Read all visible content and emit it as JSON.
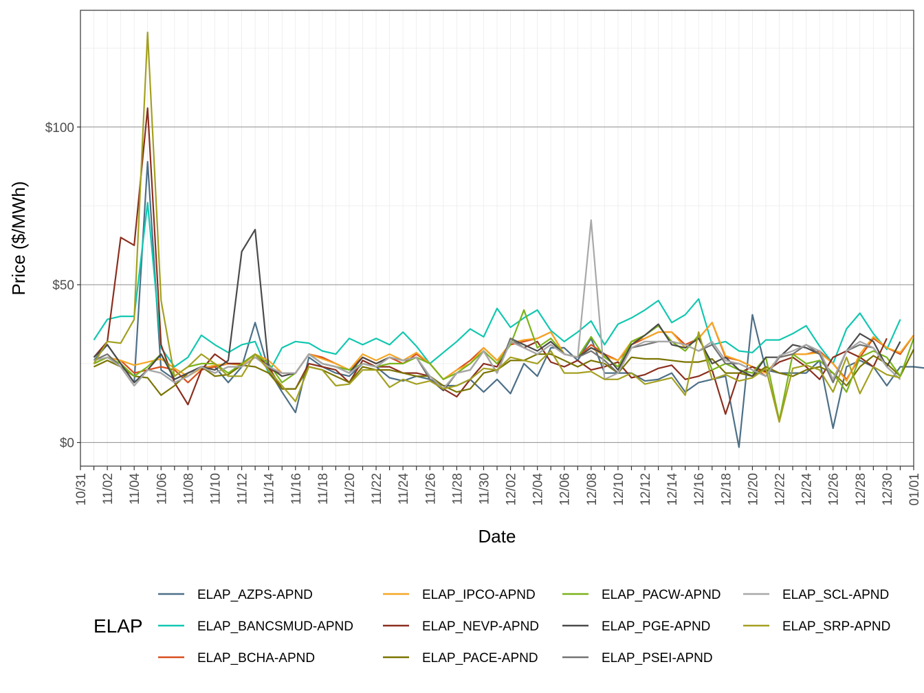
{
  "chart_data": {
    "type": "line",
    "xlabel": "Date",
    "ylabel": "Price ($/MWh)",
    "x_ticks": [
      "10/31",
      "11/02",
      "11/04",
      "11/06",
      "11/08",
      "11/10",
      "11/12",
      "11/14",
      "11/16",
      "11/18",
      "11/20",
      "11/22",
      "11/24",
      "11/26",
      "11/28",
      "11/30",
      "12/02",
      "12/04",
      "12/06",
      "12/08",
      "12/10",
      "12/12",
      "12/14",
      "12/16",
      "12/18",
      "12/20",
      "12/22",
      "12/24",
      "12/26",
      "12/28",
      "12/30",
      "01/01"
    ],
    "y_ticks": [
      {
        "value": 0,
        "label": "$0"
      },
      {
        "value": 50,
        "label": "$50"
      },
      {
        "value": 100,
        "label": "$100"
      }
    ],
    "ylim": [
      -7.5,
      137
    ],
    "x_start": "2023-10-31",
    "x_end": "2024-01-01",
    "grid": true,
    "legend": {
      "title": "ELAP",
      "position": "bottom",
      "columns": 4
    },
    "series": [
      {
        "name": "ELAP_AZPS-APND",
        "color": "#4c6f87",
        "values": [
          26,
          31,
          25,
          19,
          89,
          23,
          20,
          22,
          24,
          24,
          19,
          24,
          38,
          23,
          16,
          9.5,
          27,
          24,
          22,
          21,
          25,
          24,
          20.5,
          19.5,
          21,
          20,
          18,
          18,
          20,
          16,
          20,
          15.5,
          25,
          21,
          30,
          30,
          26,
          33,
          22,
          22,
          22,
          19.5,
          20,
          22,
          16,
          19,
          20,
          21,
          -1.5,
          40.5,
          23,
          22,
          22,
          22,
          26,
          4.5,
          24,
          26,
          24,
          18,
          24,
          24,
          23.5,
          24,
          20
        ]
      },
      {
        "name": "ELAP_BANCSMUD-APND",
        "color": "#11c7b0",
        "values": [
          32.5,
          39,
          40,
          40,
          76,
          30,
          24,
          27,
          34,
          31,
          28.5,
          31,
          32,
          22,
          30,
          32,
          31.5,
          29,
          28,
          33,
          31,
          33,
          31,
          35,
          30.5,
          25,
          28.5,
          32,
          36,
          33.5,
          42.5,
          36.5,
          39.5,
          42,
          35.5,
          32,
          35,
          38.5,
          31,
          37.5,
          39.5,
          42,
          45,
          38,
          40.5,
          45.5,
          31,
          32,
          29,
          28.5,
          32.5,
          32.5,
          34.5,
          37,
          30.5,
          25,
          36,
          41,
          34.5,
          29.5,
          39
        ]
      },
      {
        "name": "ELAP_BCHA-APND",
        "color": "#d84f1e",
        "values": [
          25,
          27,
          26,
          22,
          23,
          24,
          23,
          19,
          23,
          24,
          25,
          25,
          28,
          23,
          22,
          22,
          28,
          27,
          25,
          23,
          27,
          25,
          27,
          25,
          28,
          25,
          20,
          23,
          26,
          30,
          26,
          31,
          32,
          33,
          35,
          28,
          27,
          31,
          28,
          26,
          31,
          33,
          35,
          35,
          31,
          33,
          38,
          27,
          26,
          24,
          21,
          27,
          28,
          28,
          29,
          25,
          20,
          27,
          33,
          30,
          28,
          34
        ]
      },
      {
        "name": "ELAP_IPCO-APND",
        "color": "#f5a623",
        "values": [
          25,
          27,
          26,
          24.5,
          25.5,
          26.5,
          23.5,
          21,
          23.5,
          24.5,
          25,
          24.5,
          28,
          26,
          22,
          22,
          28,
          26.5,
          25,
          23,
          28,
          26,
          28,
          26,
          28.5,
          25,
          20,
          23,
          25,
          30,
          26,
          31.5,
          32.5,
          33,
          35,
          28,
          27,
          30,
          27.5,
          26,
          32,
          33,
          35,
          35,
          30,
          33,
          38,
          27.5,
          26,
          24,
          22,
          27,
          28,
          28,
          28.5,
          25,
          19.5,
          28,
          33.5,
          30,
          28.5,
          34
        ]
      },
      {
        "name": "ELAP_NEVP-APND",
        "color": "#8b2e1e",
        "values": [
          27,
          32,
          65,
          62.5,
          106,
          31,
          19,
          12,
          23,
          28,
          25,
          25,
          28,
          24,
          17,
          17,
          25,
          24,
          23,
          19,
          26,
          24,
          24,
          22,
          22,
          21,
          17,
          14.5,
          20,
          25,
          24,
          32,
          30,
          32,
          25.5,
          24,
          26,
          23,
          24,
          25.5,
          20.5,
          21.5,
          23.5,
          24.5,
          20,
          21,
          23,
          9,
          22,
          24,
          22.5,
          25.5,
          27,
          24,
          20,
          27,
          29,
          27,
          24,
          33
        ]
      },
      {
        "name": "ELAP_PACE-APND",
        "color": "#7a7400",
        "values": [
          24,
          26,
          24,
          21,
          20.5,
          15,
          18,
          22,
          24,
          21,
          21.5,
          24.5,
          24,
          22,
          17,
          17,
          24,
          23,
          21,
          19,
          24,
          23,
          23,
          22,
          21,
          21,
          18,
          16,
          17,
          22,
          23,
          26,
          26,
          28,
          28,
          26,
          24,
          26,
          25,
          22,
          27,
          26.5,
          26.5,
          26,
          25.5,
          25.5,
          26.5,
          22,
          22,
          21,
          24,
          22,
          21,
          23,
          24,
          22,
          18,
          24,
          27.5,
          25,
          21,
          29.5
        ]
      },
      {
        "name": "ELAP_PACW-APND",
        "color": "#7ab31a",
        "values": [
          25,
          27,
          25,
          21,
          24,
          28,
          21,
          24,
          25,
          25,
          22,
          25,
          28,
          25,
          19,
          22,
          28,
          25,
          24,
          23,
          25,
          24,
          25,
          25,
          27,
          25,
          20,
          22,
          25,
          29,
          25,
          31,
          42,
          30,
          33,
          28,
          27,
          33.5,
          27,
          24,
          32,
          34,
          37,
          32,
          29,
          34,
          23,
          25,
          23,
          22,
          27,
          7,
          28,
          25,
          26,
          22,
          16,
          27,
          29,
          27,
          21,
          33
        ]
      },
      {
        "name": "ELAP_PGE-APND",
        "color": "#4a4a4a",
        "values": [
          27,
          31,
          25,
          19,
          23,
          28,
          20,
          22,
          24,
          23,
          26,
          60.5,
          67.5,
          24,
          21,
          22,
          28,
          25,
          24,
          22,
          27,
          25,
          27,
          26,
          27,
          20,
          16.5,
          22,
          23,
          29,
          22,
          33,
          31,
          29,
          32,
          28,
          27,
          30,
          28,
          23,
          31,
          34,
          37.5,
          31,
          30,
          33,
          25,
          27,
          23,
          21,
          27,
          27,
          31,
          30,
          28,
          20,
          29,
          34.5,
          32,
          24,
          32
        ]
      },
      {
        "name": "ELAP_PSEI-APND",
        "color": "#737373",
        "values": [
          26,
          28,
          24,
          18,
          23,
          22,
          19,
          21,
          24,
          22,
          24,
          24,
          27,
          24,
          22,
          22,
          28,
          25,
          24,
          22,
          25,
          24,
          27,
          26,
          27,
          20,
          17,
          22,
          23,
          29,
          22,
          33,
          30,
          28,
          31,
          28,
          27,
          29,
          26,
          22,
          30,
          31,
          32,
          32,
          31,
          29,
          31,
          25,
          25,
          23,
          21,
          27,
          28,
          31,
          28,
          19,
          29,
          31,
          30,
          24,
          20
        ]
      },
      {
        "name": "ELAP_SCL-APND",
        "color": "#a8a8a8",
        "values": [
          26,
          27,
          24,
          18,
          23,
          22,
          19,
          21,
          24,
          22,
          24,
          24,
          27,
          24,
          22,
          22,
          28,
          25,
          24,
          22,
          25,
          24,
          27,
          26,
          27,
          21,
          17,
          22,
          23,
          29,
          22,
          32,
          30,
          28,
          31,
          28,
          27,
          70.5,
          20,
          22,
          30,
          32,
          32,
          32,
          31,
          29,
          32,
          26,
          25,
          23,
          21,
          27.5,
          29,
          31,
          29,
          20,
          29,
          32,
          30,
          24,
          20
        ]
      },
      {
        "name": "ELAP_SRP-APND",
        "color": "#a3a020",
        "values": [
          25,
          32,
          31.5,
          39,
          130,
          45,
          21,
          24,
          28,
          25,
          21,
          21,
          28,
          23,
          18,
          13,
          24,
          23,
          18,
          18.5,
          23,
          23,
          17.5,
          20,
          18.5,
          19.5,
          17,
          18,
          20,
          23.5,
          23,
          27,
          26,
          25,
          29,
          22,
          22,
          22.5,
          20,
          20,
          22,
          18.5,
          19.5,
          20.5,
          15,
          35,
          20,
          21.5,
          19.5,
          20.5,
          23.5,
          6.5,
          23.5,
          24.5,
          23,
          16,
          27,
          15.5,
          24,
          21.5,
          20.5
        ]
      }
    ]
  }
}
